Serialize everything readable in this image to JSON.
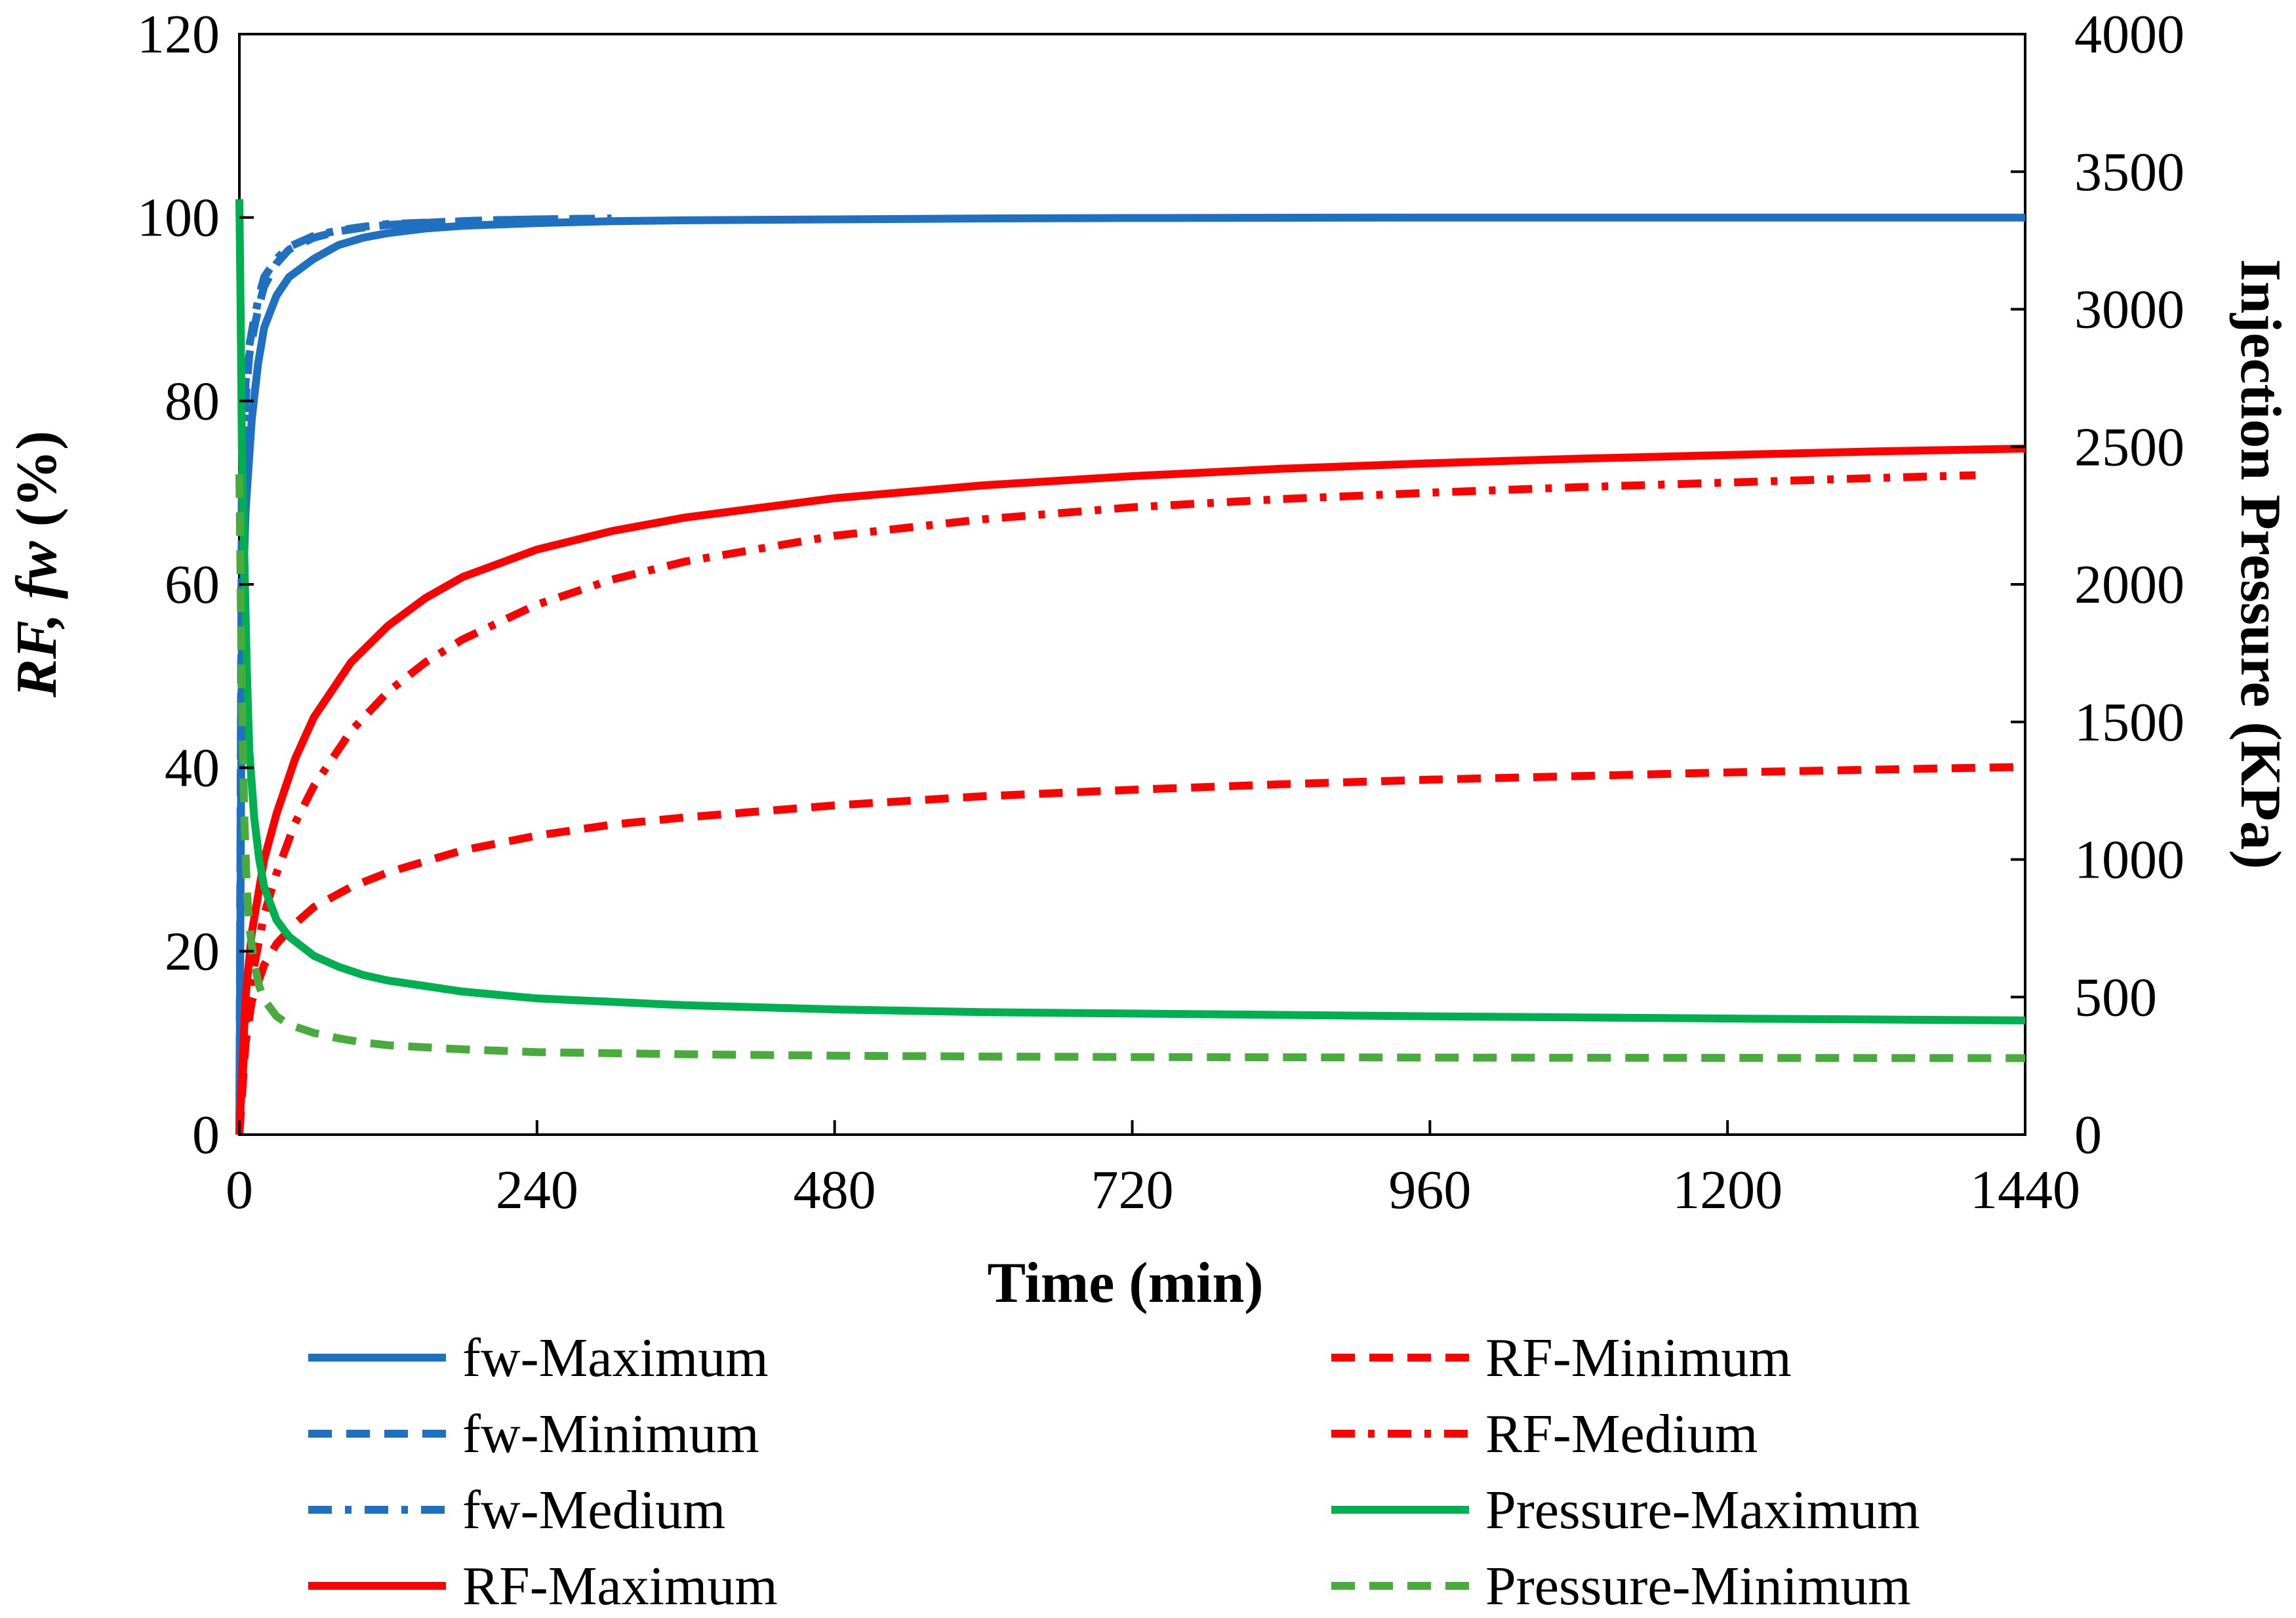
{
  "chart_data": {
    "type": "line",
    "title": "",
    "xlabel": "Time (min)",
    "ylabel": "RF, fw (%)",
    "ylabel_parts": [
      {
        "text": "RF, fw",
        "italic": true
      },
      {
        "text": " (%)",
        "italic": false
      }
    ],
    "y2label": "Injection Pressure (KPa)",
    "xlim": [
      0,
      1440
    ],
    "ylim": [
      0,
      120
    ],
    "y2lim": [
      0,
      4000
    ],
    "xticks": [
      "0",
      "240",
      "480",
      "720",
      "960",
      "1200",
      "1440"
    ],
    "yticks": [
      "0",
      "20",
      "40",
      "60",
      "80",
      "100",
      "120"
    ],
    "y2ticks": [
      "0",
      "500",
      "1000",
      "1500",
      "2000",
      "2500",
      "3000",
      "3500",
      "4000"
    ],
    "grid": false,
    "legend_position": "bottom",
    "series": [
      {
        "name": "fw-Maximum",
        "axis": "left",
        "color": "#1f70c1",
        "style": "solid",
        "x": [
          0,
          2,
          5,
          10,
          15,
          20,
          30,
          40,
          60,
          80,
          100,
          120,
          150,
          180,
          240,
          300,
          360,
          480,
          600,
          720,
          960,
          1200,
          1440
        ],
        "y": [
          0,
          55,
          68,
          78,
          84,
          88,
          91.5,
          93.5,
          95.5,
          97,
          97.8,
          98.3,
          98.8,
          99.1,
          99.4,
          99.6,
          99.7,
          99.8,
          99.9,
          99.95,
          100,
          100,
          100
        ]
      },
      {
        "name": "fw-Minimum",
        "axis": "left",
        "color": "#1f70c1",
        "style": "dashed",
        "x": [
          0,
          2,
          5,
          8,
          12,
          16,
          20,
          30,
          40,
          60,
          80,
          100,
          120,
          160,
          200,
          240,
          300
        ],
        "y": [
          0,
          70,
          80,
          85,
          88,
          90.5,
          92.5,
          95,
          96.5,
          97.8,
          98.5,
          98.9,
          99.2,
          99.5,
          99.7,
          99.8,
          99.9
        ]
      },
      {
        "name": "fw-Medium",
        "axis": "left",
        "color": "#1f70c1",
        "style": "dashdot",
        "x": [
          0,
          2,
          5,
          8,
          12,
          16,
          20,
          30,
          40,
          60,
          80,
          100,
          120,
          160,
          200,
          240,
          300
        ],
        "y": [
          0,
          72,
          82,
          86,
          89,
          91.5,
          93.5,
          95.5,
          96.8,
          98,
          98.6,
          99,
          99.3,
          99.5,
          99.7,
          99.8,
          99.9
        ]
      },
      {
        "name": "RF-Maximum",
        "axis": "left",
        "color": "#ff0000",
        "style": "solid",
        "x": [
          0,
          5,
          10,
          20,
          30,
          45,
          60,
          90,
          120,
          150,
          180,
          240,
          300,
          360,
          480,
          600,
          720,
          840,
          960,
          1080,
          1200,
          1320,
          1440
        ],
        "y": [
          0,
          15,
          22,
          30,
          35,
          41,
          45.5,
          51.5,
          55.5,
          58.5,
          60.8,
          63.8,
          65.8,
          67.3,
          69.4,
          70.8,
          71.8,
          72.6,
          73.2,
          73.7,
          74.1,
          74.5,
          74.8
        ]
      },
      {
        "name": "RF-Minimum",
        "axis": "left",
        "color": "#ff0000",
        "style": "dashed",
        "x": [
          0,
          5,
          10,
          20,
          30,
          45,
          60,
          90,
          120,
          180,
          240,
          300,
          360,
          480,
          600,
          720,
          840,
          960,
          1080,
          1200,
          1320,
          1440
        ],
        "y": [
          0,
          10,
          14.5,
          18.5,
          20.8,
          23,
          24.8,
          27,
          28.6,
          31,
          32.6,
          33.8,
          34.6,
          35.9,
          36.9,
          37.6,
          38.2,
          38.7,
          39.1,
          39.5,
          39.8,
          40.1
        ]
      },
      {
        "name": "RF-Medium",
        "axis": "left",
        "color": "#ff0000",
        "style": "dashdot",
        "x": [
          0,
          5,
          10,
          20,
          30,
          45,
          60,
          90,
          120,
          150,
          180,
          240,
          300,
          360,
          480,
          600,
          720,
          840,
          960,
          1080,
          1200,
          1320,
          1400
        ],
        "y": [
          0,
          12,
          17,
          24,
          28.5,
          34,
          38,
          44,
          48.3,
          51.5,
          54,
          57.8,
          60.5,
          62.5,
          65.3,
          67.1,
          68.4,
          69.3,
          70,
          70.6,
          71.1,
          71.6,
          71.9
        ]
      },
      {
        "name": "Pressure-Maximum",
        "axis": "right",
        "color": "#00b050",
        "style": "solid",
        "x": [
          0,
          1,
          2,
          4,
          6,
          8,
          12,
          16,
          20,
          30,
          40,
          60,
          80,
          100,
          120,
          180,
          240,
          360,
          480,
          600,
          720,
          960,
          1200,
          1440
        ],
        "y": [
          3400,
          3000,
          2500,
          2100,
          1700,
          1400,
          1150,
          1000,
          900,
          780,
          720,
          650,
          610,
          580,
          560,
          520,
          495,
          470,
          455,
          445,
          440,
          430,
          422,
          415
        ]
      },
      {
        "name": "Pressure-Minimum",
        "axis": "right",
        "color": "#4aab3d",
        "style": "dashed",
        "x": [
          0,
          1,
          2,
          4,
          6,
          8,
          12,
          16,
          20,
          30,
          40,
          60,
          80,
          100,
          120,
          180,
          240,
          360,
          480,
          600,
          720,
          960,
          1200,
          1440
        ],
        "y": [
          2400,
          2000,
          1600,
          1150,
          900,
          760,
          620,
          540,
          490,
          430,
          400,
          370,
          350,
          335,
          325,
          310,
          300,
          292,
          287,
          284,
          282,
          280,
          279,
          278
        ]
      }
    ]
  }
}
